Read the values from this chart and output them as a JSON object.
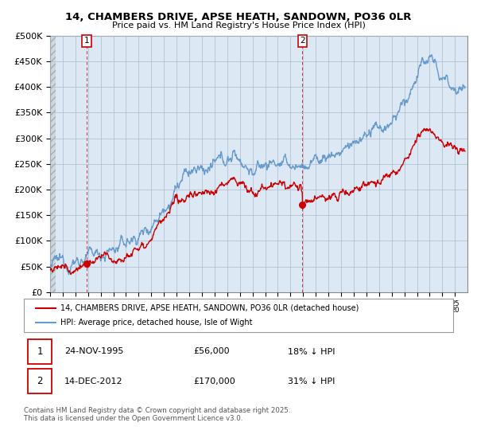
{
  "title1": "14, CHAMBERS DRIVE, APSE HEATH, SANDOWN, PO36 0LR",
  "title2": "Price paid vs. HM Land Registry's House Price Index (HPI)",
  "ylabel_ticks": [
    "£0",
    "£50K",
    "£100K",
    "£150K",
    "£200K",
    "£250K",
    "£300K",
    "£350K",
    "£400K",
    "£450K",
    "£500K"
  ],
  "ytick_values": [
    0,
    50000,
    100000,
    150000,
    200000,
    250000,
    300000,
    350000,
    400000,
    450000,
    500000
  ],
  "xlim_start": 1993.0,
  "xlim_end": 2025.99,
  "ylim_min": 0,
  "ylim_max": 500000,
  "purchase1_year": 1995.9,
  "purchase1_price": 56000,
  "purchase2_year": 2012.95,
  "purchase2_price": 170000,
  "legend_line1": "14, CHAMBERS DRIVE, APSE HEATH, SANDOWN, PO36 0LR (detached house)",
  "legend_line2": "HPI: Average price, detached house, Isle of Wight",
  "note1_date": "24-NOV-1995",
  "note1_price": "£56,000",
  "note1_hpi": "18% ↓ HPI",
  "note2_date": "14-DEC-2012",
  "note2_price": "£170,000",
  "note2_hpi": "31% ↓ HPI",
  "footer": "Contains HM Land Registry data © Crown copyright and database right 2025.\nThis data is licensed under the Open Government Licence v3.0.",
  "line_red": "#cc0000",
  "line_blue": "#6699cc",
  "bg_color": "#ffffff",
  "chart_bg": "#dce9f5",
  "hatch_bg": "#d0d8e0",
  "grid_color": "#aabbcc"
}
